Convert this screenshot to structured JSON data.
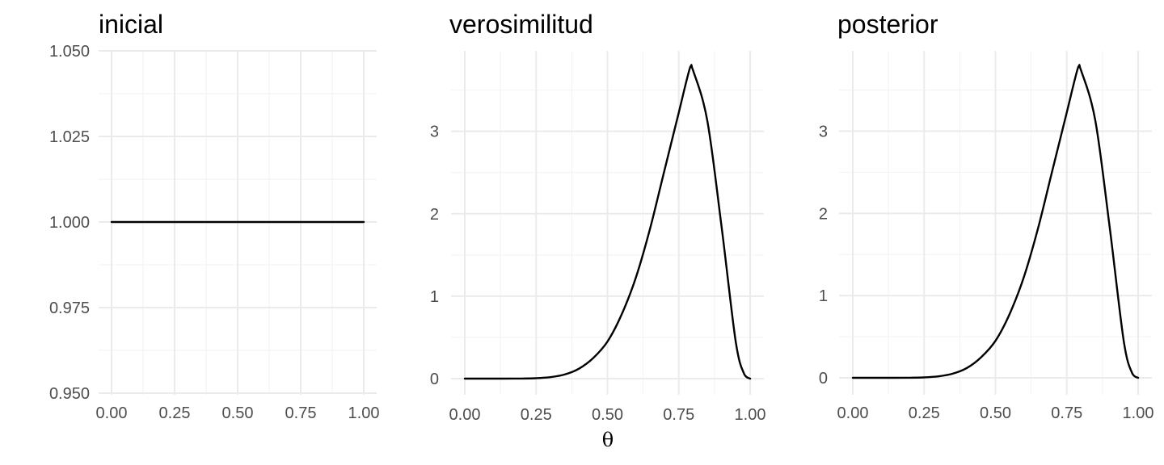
{
  "chart_data": [
    {
      "type": "line",
      "title": "inicial",
      "xlabel": "",
      "ylabel": "",
      "xlim": [
        0,
        1
      ],
      "ylim": [
        0.95,
        1.05
      ],
      "x_ticks": [
        "0.00",
        "0.25",
        "0.50",
        "0.75",
        "1.00"
      ],
      "y_ticks": [
        "0.950",
        "0.975",
        "1.000",
        "1.025",
        "1.050"
      ],
      "grid": true,
      "series": [
        {
          "x": [
            0,
            1
          ],
          "y": [
            1,
            1
          ]
        }
      ]
    },
    {
      "type": "line",
      "title": "verosimilitud",
      "xlabel": "θ",
      "ylabel": "",
      "xlim": [
        0,
        1
      ],
      "ylim": [
        0,
        3.8
      ],
      "x_ticks": [
        "0.00",
        "0.25",
        "0.50",
        "0.75",
        "1.00"
      ],
      "y_ticks": [
        "0",
        "1",
        "2",
        "3"
      ],
      "grid": true,
      "series": [
        {
          "x": [
            0,
            0.1,
            0.2,
            0.25,
            0.3,
            0.35,
            0.4,
            0.45,
            0.5,
            0.55,
            0.6,
            0.65,
            0.7,
            0.75,
            0.79,
            0.8,
            0.85,
            0.9,
            0.95,
            0.98,
            1.0
          ],
          "y": [
            0,
            0,
            0.001,
            0.005,
            0.018,
            0.05,
            0.12,
            0.25,
            0.45,
            0.78,
            1.23,
            1.83,
            2.53,
            3.23,
            3.78,
            3.74,
            3.13,
            1.84,
            0.44,
            0.05,
            0
          ]
        }
      ]
    },
    {
      "type": "line",
      "title": "posterior",
      "xlabel": "",
      "ylabel": "",
      "xlim": [
        0,
        1
      ],
      "ylim": [
        0,
        3.8
      ],
      "x_ticks": [
        "0.00",
        "0.25",
        "0.50",
        "0.75",
        "1.00"
      ],
      "y_ticks": [
        "0",
        "1",
        "2",
        "3"
      ],
      "grid": true,
      "series": [
        {
          "x": [
            0,
            0.1,
            0.2,
            0.25,
            0.3,
            0.35,
            0.4,
            0.45,
            0.5,
            0.55,
            0.6,
            0.65,
            0.7,
            0.75,
            0.79,
            0.8,
            0.85,
            0.9,
            0.95,
            0.98,
            1.0
          ],
          "y": [
            0,
            0,
            0.001,
            0.005,
            0.018,
            0.05,
            0.12,
            0.25,
            0.45,
            0.78,
            1.23,
            1.83,
            2.53,
            3.23,
            3.78,
            3.74,
            3.13,
            1.84,
            0.44,
            0.05,
            0
          ]
        }
      ]
    }
  ]
}
